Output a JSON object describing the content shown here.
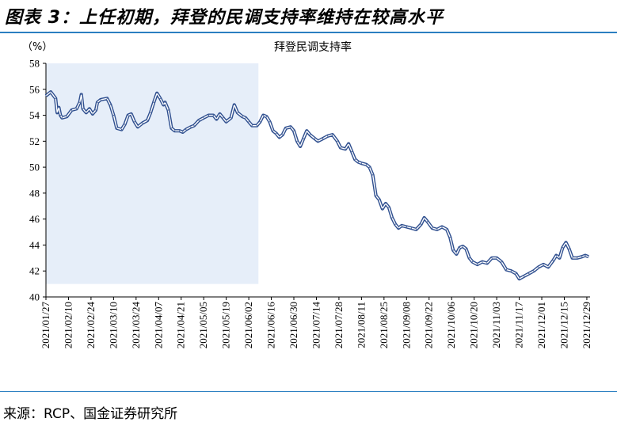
{
  "header": {
    "title": "图表 3：上任初期，拜登的民调支持率维持在较高水平"
  },
  "footer": {
    "source": "来源：RCP、国金证券研究所"
  },
  "colors": {
    "accent_rule": "#2b7fc1",
    "line": "#2f4f8f",
    "highlight_band": "#e6eef9"
  },
  "chart_data": {
    "type": "line",
    "title": "拜登民调支持率",
    "ylabel": "（%）",
    "xlabel": "",
    "ylim": [
      40,
      58
    ],
    "yticks": [
      40,
      42,
      44,
      46,
      48,
      50,
      52,
      54,
      56,
      58
    ],
    "grid": false,
    "legend": "none",
    "highlight_range": {
      "from": "2021/01/27",
      "to": "2021/06/08",
      "ylim": [
        41,
        58
      ]
    },
    "xticks": [
      "2021/01/27",
      "2021/02/10",
      "2021/02/24",
      "2021/03/10",
      "2021/03/24",
      "2021/04/07",
      "2021/04/21",
      "2021/05/05",
      "2021/05/19",
      "2021/06/02",
      "2021/06/16",
      "2021/06/30",
      "2021/07/14",
      "2021/07/28",
      "2021/08/11",
      "2021/08/25",
      "2021/09/08",
      "2021/09/22",
      "2021/10/06",
      "2021/10/20",
      "2021/11/03",
      "2021/11/17",
      "2021/12/01",
      "2021/12/15",
      "2021/12/29"
    ],
    "series": [
      {
        "values": [
          [
            "2021/01/27",
            55.5
          ],
          [
            "2021/01/30",
            55.8
          ],
          [
            "2021/02/02",
            55.3
          ],
          [
            "2021/02/03",
            54.2
          ],
          [
            "2021/02/04",
            54.6
          ],
          [
            "2021/02/05",
            54.0
          ],
          [
            "2021/02/06",
            53.8
          ],
          [
            "2021/02/09",
            53.9
          ],
          [
            "2021/02/12",
            54.4
          ],
          [
            "2021/02/15",
            54.5
          ],
          [
            "2021/02/17",
            55.0
          ],
          [
            "2021/02/18",
            55.6
          ],
          [
            "2021/02/19",
            54.5
          ],
          [
            "2021/02/21",
            54.2
          ],
          [
            "2021/02/23",
            54.5
          ],
          [
            "2021/02/25",
            54.1
          ],
          [
            "2021/02/27",
            54.4
          ],
          [
            "2021/02/28",
            55.0
          ],
          [
            "2021/03/02",
            55.2
          ],
          [
            "2021/03/06",
            55.3
          ],
          [
            "2021/03/08",
            54.8
          ],
          [
            "2021/03/10",
            54.0
          ],
          [
            "2021/03/12",
            53.0
          ],
          [
            "2021/03/15",
            52.9
          ],
          [
            "2021/03/17",
            53.3
          ],
          [
            "2021/03/19",
            54.0
          ],
          [
            "2021/03/21",
            54.1
          ],
          [
            "2021/03/23",
            53.5
          ],
          [
            "2021/03/25",
            53.1
          ],
          [
            "2021/03/28",
            53.4
          ],
          [
            "2021/03/31",
            53.6
          ],
          [
            "2021/04/02",
            54.2
          ],
          [
            "2021/04/04",
            55.0
          ],
          [
            "2021/04/06",
            55.7
          ],
          [
            "2021/04/08",
            55.3
          ],
          [
            "2021/04/10",
            54.8
          ],
          [
            "2021/04/11",
            55.0
          ],
          [
            "2021/04/13",
            54.4
          ],
          [
            "2021/04/15",
            53.0
          ],
          [
            "2021/04/17",
            52.8
          ],
          [
            "2021/04/20",
            52.8
          ],
          [
            "2021/04/22",
            52.7
          ],
          [
            "2021/04/24",
            52.9
          ],
          [
            "2021/04/27",
            53.1
          ],
          [
            "2021/04/29",
            53.2
          ],
          [
            "2021/05/02",
            53.6
          ],
          [
            "2021/05/05",
            53.8
          ],
          [
            "2021/05/08",
            54.0
          ],
          [
            "2021/05/11",
            54.0
          ],
          [
            "2021/05/13",
            53.7
          ],
          [
            "2021/05/15",
            54.1
          ],
          [
            "2021/05/17",
            53.8
          ],
          [
            "2021/05/19",
            53.5
          ],
          [
            "2021/05/22",
            53.8
          ],
          [
            "2021/05/24",
            54.8
          ],
          [
            "2021/05/26",
            54.2
          ],
          [
            "2021/05/29",
            53.9
          ],
          [
            "2021/05/31",
            53.8
          ],
          [
            "2021/06/02",
            53.5
          ],
          [
            "2021/06/04",
            53.2
          ],
          [
            "2021/06/07",
            53.2
          ],
          [
            "2021/06/09",
            53.5
          ],
          [
            "2021/06/11",
            54.0
          ],
          [
            "2021/06/13",
            53.9
          ],
          [
            "2021/06/15",
            53.5
          ],
          [
            "2021/06/17",
            52.8
          ],
          [
            "2021/06/19",
            52.6
          ],
          [
            "2021/06/21",
            52.3
          ],
          [
            "2021/06/23",
            52.5
          ],
          [
            "2021/06/25",
            53.0
          ],
          [
            "2021/06/28",
            53.1
          ],
          [
            "2021/06/30",
            52.8
          ],
          [
            "2021/07/02",
            52.0
          ],
          [
            "2021/07/04",
            51.6
          ],
          [
            "2021/07/06",
            52.2
          ],
          [
            "2021/07/08",
            52.8
          ],
          [
            "2021/07/10",
            52.5
          ],
          [
            "2021/07/13",
            52.2
          ],
          [
            "2021/07/15",
            52.0
          ],
          [
            "2021/07/18",
            52.2
          ],
          [
            "2021/07/21",
            52.4
          ],
          [
            "2021/07/24",
            52.5
          ],
          [
            "2021/07/27",
            52.0
          ],
          [
            "2021/07/29",
            51.5
          ],
          [
            "2021/08/01",
            51.4
          ],
          [
            "2021/08/03",
            51.8
          ],
          [
            "2021/08/05",
            51.2
          ],
          [
            "2021/08/07",
            50.6
          ],
          [
            "2021/08/09",
            50.4
          ],
          [
            "2021/08/11",
            50.3
          ],
          [
            "2021/08/14",
            50.2
          ],
          [
            "2021/08/16",
            50.0
          ],
          [
            "2021/08/18",
            49.4
          ],
          [
            "2021/08/20",
            47.8
          ],
          [
            "2021/08/22",
            47.5
          ],
          [
            "2021/08/24",
            46.8
          ],
          [
            "2021/08/26",
            47.2
          ],
          [
            "2021/08/28",
            46.9
          ],
          [
            "2021/08/30",
            46.1
          ],
          [
            "2021/09/01",
            45.6
          ],
          [
            "2021/09/03",
            45.3
          ],
          [
            "2021/09/05",
            45.5
          ],
          [
            "2021/09/08",
            45.4
          ],
          [
            "2021/09/11",
            45.3
          ],
          [
            "2021/09/14",
            45.2
          ],
          [
            "2021/09/17",
            45.6
          ],
          [
            "2021/09/19",
            46.1
          ],
          [
            "2021/09/21",
            45.8
          ],
          [
            "2021/09/24",
            45.3
          ],
          [
            "2021/09/27",
            45.2
          ],
          [
            "2021/09/30",
            45.4
          ],
          [
            "2021/10/03",
            45.2
          ],
          [
            "2021/10/05",
            44.6
          ],
          [
            "2021/10/07",
            43.6
          ],
          [
            "2021/10/09",
            43.3
          ],
          [
            "2021/10/11",
            43.8
          ],
          [
            "2021/10/13",
            43.9
          ],
          [
            "2021/10/15",
            43.7
          ],
          [
            "2021/10/17",
            43.0
          ],
          [
            "2021/10/19",
            42.7
          ],
          [
            "2021/10/22",
            42.5
          ],
          [
            "2021/10/25",
            42.7
          ],
          [
            "2021/10/28",
            42.6
          ],
          [
            "2021/10/31",
            43.0
          ],
          [
            "2021/11/03",
            43.0
          ],
          [
            "2021/11/06",
            42.7
          ],
          [
            "2021/11/09",
            42.1
          ],
          [
            "2021/11/12",
            42.0
          ],
          [
            "2021/11/15",
            41.8
          ],
          [
            "2021/11/17",
            41.4
          ],
          [
            "2021/11/20",
            41.6
          ],
          [
            "2021/11/23",
            41.8
          ],
          [
            "2021/11/26",
            42.0
          ],
          [
            "2021/11/29",
            42.3
          ],
          [
            "2021/12/02",
            42.5
          ],
          [
            "2021/12/05",
            42.3
          ],
          [
            "2021/12/08",
            42.8
          ],
          [
            "2021/12/10",
            43.2
          ],
          [
            "2021/12/12",
            43.0
          ],
          [
            "2021/12/14",
            43.8
          ],
          [
            "2021/12/16",
            44.2
          ],
          [
            "2021/12/18",
            43.7
          ],
          [
            "2021/12/20",
            43.0
          ],
          [
            "2021/12/23",
            43.0
          ],
          [
            "2021/12/26",
            43.1
          ],
          [
            "2021/12/28",
            43.2
          ],
          [
            "2021/12/30",
            43.1
          ]
        ]
      }
    ]
  }
}
